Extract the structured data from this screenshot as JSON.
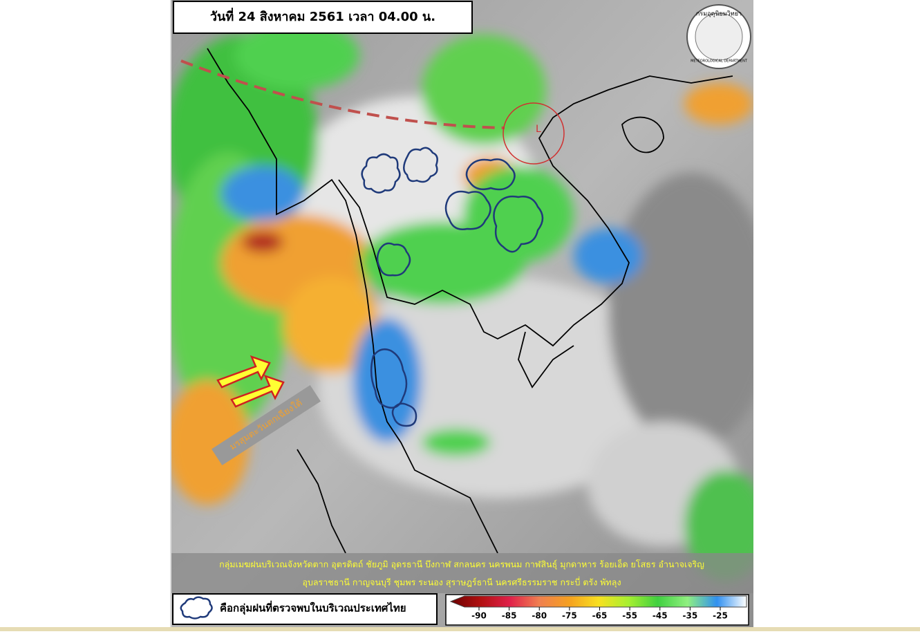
{
  "header": {
    "title": "วันที่ 24 สิงหาคม 2561 เวลา 04.00 น."
  },
  "logo": {
    "name": "กรมอุตุนิยมวิทยา",
    "name_en": "METEOROLOGICAL DEPARTMENT"
  },
  "annotations": {
    "low": "L",
    "monsoon": "มรสุมตะวันตกเฉียงใต้"
  },
  "rain_areas": {
    "lines": [
      "กลุ่มเมฆฝนบริเวณจังหวัดตาก อุตรดิตถ์ ชัยภูมิ อุดรธานี บึงกาฬ สกลนคร นครพนม กาฬสินธุ์ มุกดาหาร ร้อยเอ็ด ยโสธร อำนาจเจริญ",
      "อุบลราชธานี กาญจนบุรี ชุมพร ระนอง สุราษฎร์ธานี นครศรีธรรมราช กระบี่ ตรัง พัทลุง"
    ]
  },
  "legend": {
    "label": "คือกลุ่มฝนที่ตรวจพบในบริเวณประเทศไทย"
  },
  "color_scale": {
    "ticks": [
      -90,
      -85,
      -80,
      -75,
      -65,
      -55,
      -45,
      -35,
      -25
    ]
  }
}
